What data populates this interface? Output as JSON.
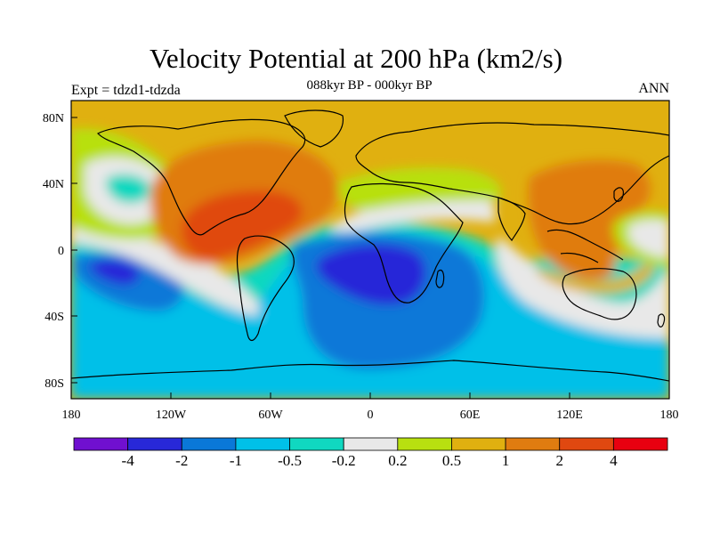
{
  "header": {
    "title": "Velocity Potential at 200 hPa (km2/s)",
    "subtitle": "088kyr BP - 000kyr BP",
    "experiment": "Expt = tdzd1-tdzda",
    "season": "ANN"
  },
  "axes": {
    "x_ticks": [
      "180",
      "120W",
      "60W",
      "0",
      "60E",
      "120E",
      "180"
    ],
    "y_ticks": [
      "80N",
      "40N",
      "0",
      "40S",
      "80S"
    ]
  },
  "colorbar": {
    "colors": [
      "#7010d0",
      "#2828d8",
      "#0a78d8",
      "#00c0e8",
      "#10d8c0",
      "#e8e8e8",
      "#b8e010",
      "#e0b010",
      "#e07c10",
      "#e04810",
      "#e80010"
    ],
    "labels": [
      "-4",
      "-2",
      "-1",
      "-0.5",
      "-0.2",
      "0.2",
      "0.5",
      "1",
      "2",
      "4"
    ]
  },
  "chart_data": {
    "type": "heatmap",
    "title": "Velocity Potential at 200 hPa (km2/s)",
    "subtitle": "088kyr BP - 000kyr BP",
    "projection": "cylindrical equidistant",
    "lon_range": [
      -180,
      180
    ],
    "lat_range": [
      -90,
      90
    ],
    "contour_levels": [
      -4,
      -2,
      -1,
      -0.5,
      -0.2,
      0.2,
      0.5,
      1,
      2,
      4
    ],
    "features": [
      {
        "region": "Tropical Americas / Caribbean",
        "sign": "positive",
        "max_level": "2 to 4"
      },
      {
        "region": "Western Pacific / Maritime Continent",
        "sign": "positive",
        "max_level": "1 to 2"
      },
      {
        "region": "Southern Africa / South Atlantic",
        "sign": "negative",
        "min_level": "-2 to -4"
      },
      {
        "region": "Central South Pacific",
        "sign": "negative",
        "min_level": "-2 to -4"
      },
      {
        "region": "North Pacific",
        "sign": "negative",
        "min_level": "-0.2 to -0.5"
      },
      {
        "region": "Southern Ocean",
        "sign": "negative",
        "min_level": "-0.5 to -1"
      }
    ]
  }
}
